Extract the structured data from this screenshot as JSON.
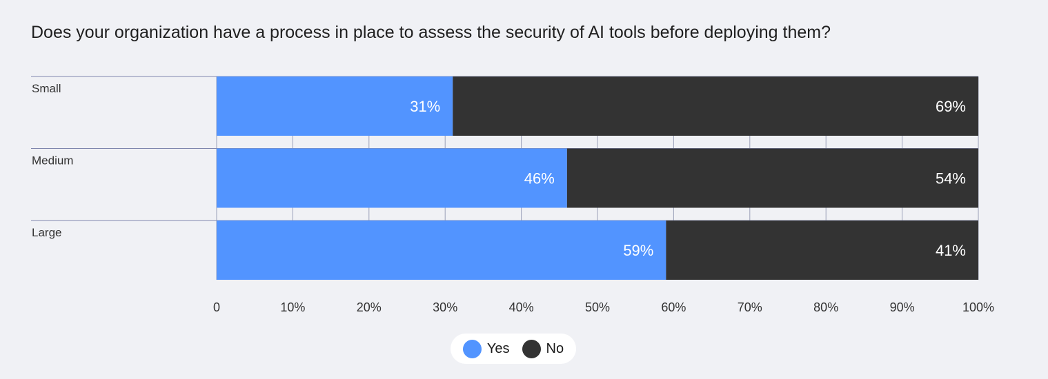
{
  "title": "Does your organization have a process in place to assess the security of AI tools before deploying them?",
  "colors": {
    "yes": "#5294ff",
    "no": "#333333",
    "grid": "#9aa0b8",
    "separator": "#7f86ad",
    "axis_text": "#333333",
    "bar_text": "#ffffff",
    "background": "#f0f1f5"
  },
  "legend": {
    "position": "bottom-center",
    "items": [
      {
        "label": "Yes",
        "color": "#5294ff"
      },
      {
        "label": "No",
        "color": "#333333"
      }
    ]
  },
  "chart_data": {
    "type": "bar",
    "orientation": "horizontal",
    "stacked": true,
    "title": "Does your organization have a process in place to assess the security of AI tools before deploying them?",
    "categories": [
      "Small",
      "Medium",
      "Large"
    ],
    "series": [
      {
        "name": "Yes",
        "values": [
          31,
          46,
          59
        ],
        "labels": [
          "31%",
          "46%",
          "59%"
        ]
      },
      {
        "name": "No",
        "values": [
          69,
          54,
          41
        ],
        "labels": [
          "69%",
          "54%",
          "41%"
        ]
      }
    ],
    "xlim": [
      0,
      100
    ],
    "x_ticks": [
      0,
      10,
      20,
      30,
      40,
      50,
      60,
      70,
      80,
      90,
      100
    ],
    "x_tick_labels": [
      "0",
      "10%",
      "20%",
      "30%",
      "40%",
      "50%",
      "60%",
      "70%",
      "80%",
      "90%",
      "100%"
    ],
    "grid": true,
    "xlabel": "",
    "ylabel": "",
    "legend_position": "bottom-center"
  }
}
